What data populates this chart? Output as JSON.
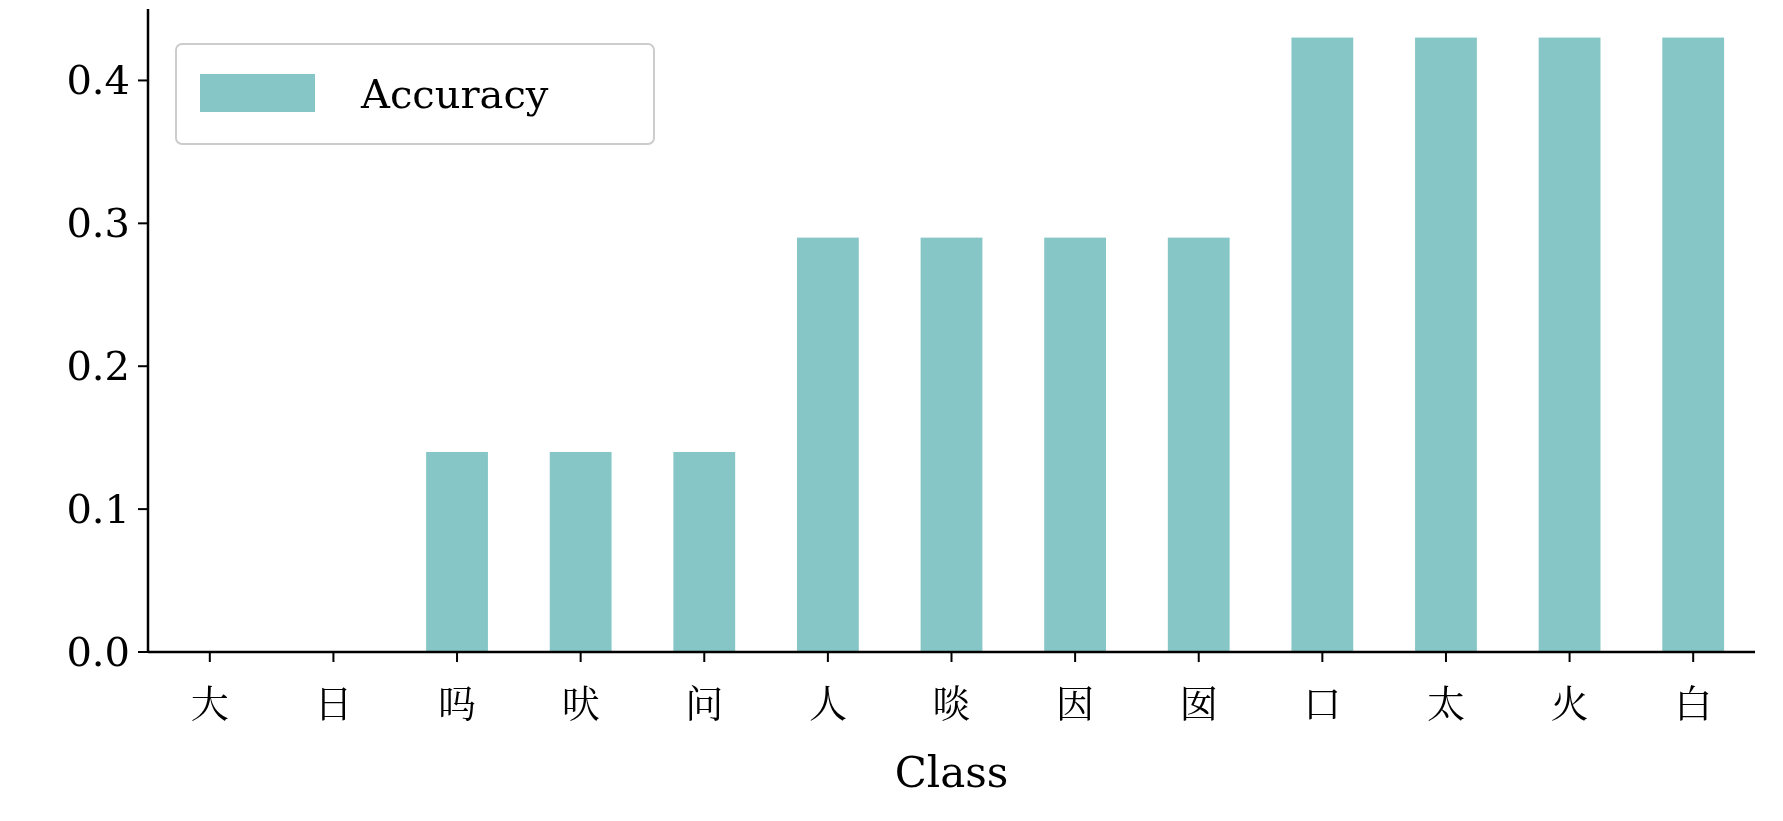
{
  "chart_data": {
    "type": "bar",
    "xlabel": "Class",
    "categories": [
      "大",
      "日",
      "吗",
      "吠",
      "问",
      "人",
      "啖",
      "因",
      "囡",
      "口",
      "太",
      "火",
      "白"
    ],
    "series": [
      {
        "name": "Accuracy",
        "color": "#86c6c6",
        "values": [
          0,
          0,
          0.14,
          0.14,
          0.14,
          0.29,
          0.29,
          0.29,
          0.29,
          0.43,
          0.43,
          0.43,
          0.43
        ]
      }
    ],
    "ylim": [
      0,
      0.45
    ],
    "yticks": [
      {
        "value": 0,
        "label": "0.0"
      },
      0.1,
      0.2,
      0.3,
      0.4
    ],
    "grid": false,
    "legend": "top left"
  }
}
